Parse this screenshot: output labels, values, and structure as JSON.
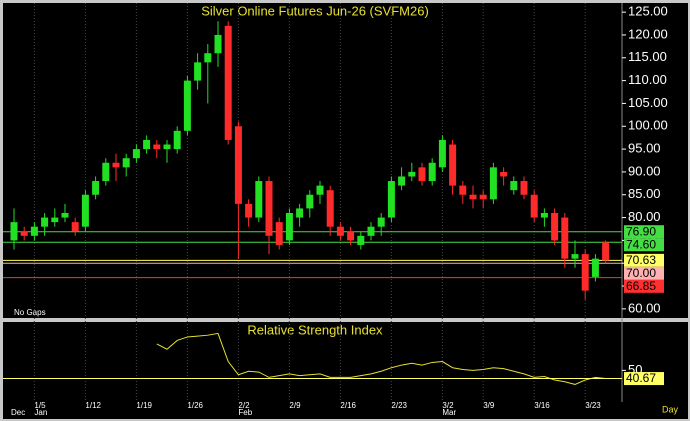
{
  "chart_data": [
    {
      "type": "candlestick",
      "title": "Silver Online Futures Jun-26 (SVFM26)",
      "note": "No Gaps",
      "period": "Day",
      "categories": [
        null,
        null,
        "1/5",
        null,
        null,
        null,
        null,
        "1/12",
        null,
        null,
        null,
        null,
        "1/19",
        null,
        null,
        null,
        null,
        "1/26",
        null,
        null,
        null,
        null,
        "2/2",
        null,
        null,
        null,
        null,
        "2/9",
        null,
        null,
        null,
        null,
        "2/16",
        null,
        null,
        null,
        null,
        "2/23",
        null,
        null,
        null,
        null,
        "3/2",
        null,
        null,
        null,
        "3/9",
        null,
        null,
        null,
        null,
        "3/16",
        null,
        null,
        null,
        null,
        "3/23",
        null,
        null
      ],
      "months": [
        "Dec",
        null,
        "Jan",
        null,
        null,
        null,
        null,
        null,
        null,
        null,
        null,
        null,
        null,
        null,
        null,
        null,
        null,
        null,
        null,
        null,
        null,
        null,
        "Feb",
        null,
        null,
        null,
        null,
        null,
        null,
        null,
        null,
        null,
        null,
        null,
        null,
        null,
        null,
        null,
        null,
        null,
        null,
        null,
        "Mar",
        null,
        null,
        null,
        null,
        null,
        null,
        null,
        null,
        null,
        null,
        null,
        null,
        null,
        null,
        null,
        null
      ],
      "open": [
        75,
        77,
        76,
        78,
        79,
        80,
        79,
        78,
        85,
        88,
        92,
        91,
        93,
        95,
        96,
        95,
        95,
        99,
        110,
        114,
        116,
        122,
        100,
        83,
        80,
        88,
        79,
        75,
        80,
        82,
        85,
        86,
        78,
        77,
        74,
        76,
        78,
        80,
        87,
        89,
        91,
        88,
        91,
        96,
        87,
        85,
        85,
        84,
        90,
        86,
        88,
        85,
        80,
        81,
        80,
        71,
        72,
        67,
        74.6
      ],
      "high": [
        82,
        78,
        79,
        81,
        82,
        83,
        80,
        86,
        89,
        93,
        94,
        94,
        96,
        98,
        97,
        97,
        100,
        111,
        116,
        118,
        123,
        123,
        101,
        84,
        89,
        89,
        80,
        82,
        83,
        86,
        88,
        87,
        79,
        78,
        77,
        79,
        81,
        89,
        91,
        92,
        92,
        93,
        98,
        97,
        88,
        87,
        86,
        92,
        91,
        89,
        89,
        86,
        82,
        82,
        81,
        75,
        73,
        72,
        75
      ],
      "low": [
        73,
        75,
        75,
        76,
        78,
        79,
        76,
        77,
        84,
        87,
        88,
        89,
        92,
        94,
        93,
        92,
        94,
        98,
        108,
        105,
        113,
        96,
        71,
        78,
        79,
        72,
        73,
        74,
        78,
        80,
        83,
        76,
        75,
        74,
        73,
        75,
        76,
        79,
        86,
        88,
        87,
        87,
        90,
        85,
        83,
        82,
        82,
        83,
        87,
        85,
        84,
        79,
        78,
        74,
        69,
        69,
        62,
        66,
        70
      ],
      "close": [
        79,
        76,
        78,
        80,
        80,
        81,
        77,
        85,
        88,
        92,
        91,
        93,
        95,
        97,
        95,
        96,
        99,
        110,
        114,
        116,
        120,
        97,
        83,
        80,
        88,
        76,
        74,
        81,
        82,
        85,
        87,
        78,
        76,
        75,
        76,
        78,
        80,
        88,
        89,
        90,
        88,
        92,
        97,
        87,
        85,
        84,
        84,
        91,
        89,
        88,
        85,
        80,
        81,
        75,
        71,
        72,
        64,
        71,
        70.63
      ],
      "ylim": [
        58,
        127
      ],
      "yticks": [
        {
          "value": 60,
          "label": "60.00"
        },
        {
          "value": 65,
          "label": "65.00"
        },
        {
          "value": 70,
          "label": "70.00"
        },
        {
          "value": 75,
          "label": "75.00"
        },
        {
          "value": 80,
          "label": "80.00"
        },
        {
          "value": 85,
          "label": "85.00"
        },
        {
          "value": 90,
          "label": "90.00"
        },
        {
          "value": 95,
          "label": "95.00"
        },
        {
          "value": 100,
          "label": "100.00"
        },
        {
          "value": 105,
          "label": "105.00"
        },
        {
          "value": 110,
          "label": "110.00"
        },
        {
          "value": 115,
          "label": "115.00"
        },
        {
          "value": 120,
          "label": "120.00"
        },
        {
          "value": 125,
          "label": "125.00"
        }
      ],
      "up_color": "#22e022",
      "down_color": "#ff2a2a",
      "levels": [
        {
          "value": 76.9,
          "label": "76.90",
          "color": "#44dd44"
        },
        {
          "value": 74.6,
          "label": "74.60",
          "color": "#44dd44"
        },
        {
          "value": 70.63,
          "label": "70.63",
          "color": "#ffff66"
        },
        {
          "value": 70,
          "label": "70.00",
          "color": "#ffb0b0"
        },
        {
          "value": 66.85,
          "label": "66.85",
          "color": "#ff3030"
        }
      ]
    },
    {
      "type": "line",
      "title": "Relative Strength Index",
      "color": "#e6e030",
      "values": [
        null,
        null,
        null,
        null,
        null,
        null,
        null,
        null,
        null,
        null,
        null,
        null,
        null,
        null,
        80,
        74,
        84,
        88,
        89,
        90,
        92,
        60,
        45,
        49,
        48,
        42,
        44,
        46,
        44,
        45,
        46,
        42,
        42,
        42,
        44,
        46,
        49,
        53,
        56,
        58,
        56,
        59,
        60,
        53,
        51,
        50,
        51,
        53,
        52,
        49,
        46,
        42,
        43,
        39,
        37,
        34,
        39,
        42,
        40.67
      ],
      "ylim": [
        14,
        105
      ],
      "yticks": [
        50
      ],
      "levels": [
        {
          "value": 40.67,
          "label": "40.67",
          "color": "#ffff66"
        }
      ]
    }
  ]
}
